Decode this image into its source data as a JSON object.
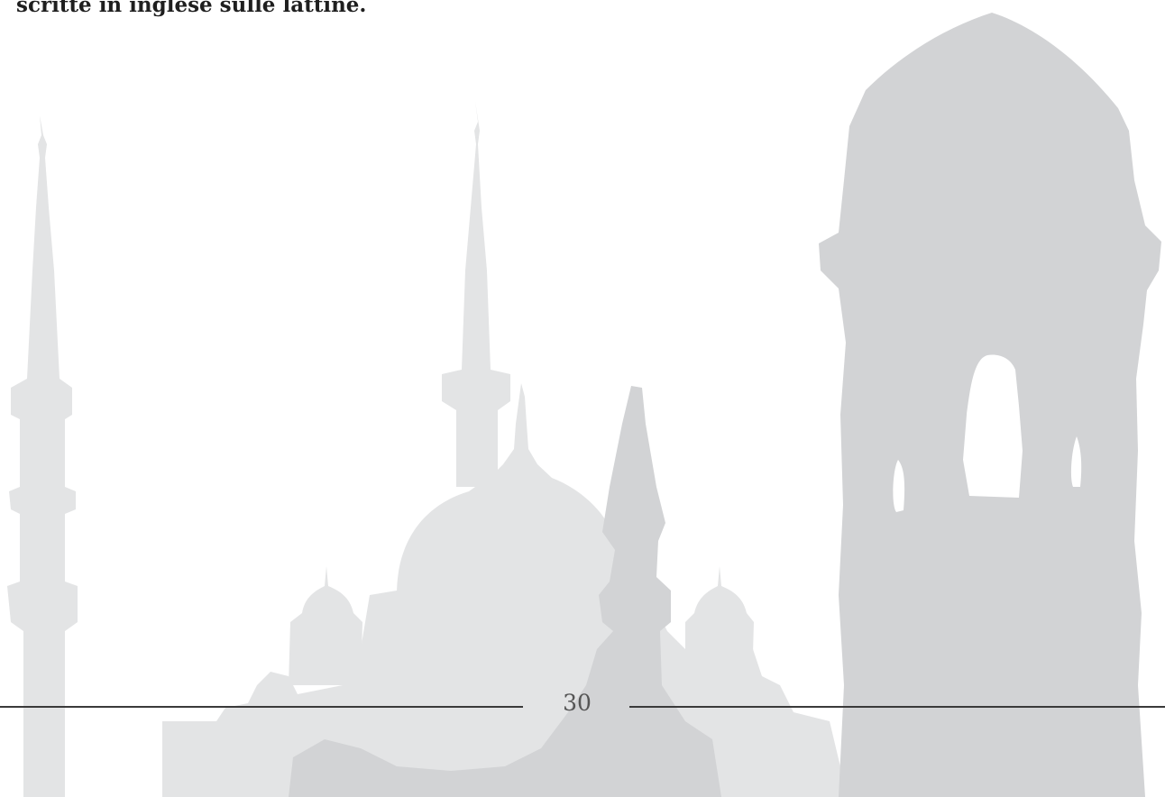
{
  "document": {
    "body_text": "scritte in inglese sulle lattine.",
    "page_number": "30"
  },
  "colors": {
    "background": "#ffffff",
    "text": "#1f1f1f",
    "skyline_light": "#e3e4e5",
    "skyline_dark": "#d2d3d5",
    "rule": "#3a3a3a"
  }
}
